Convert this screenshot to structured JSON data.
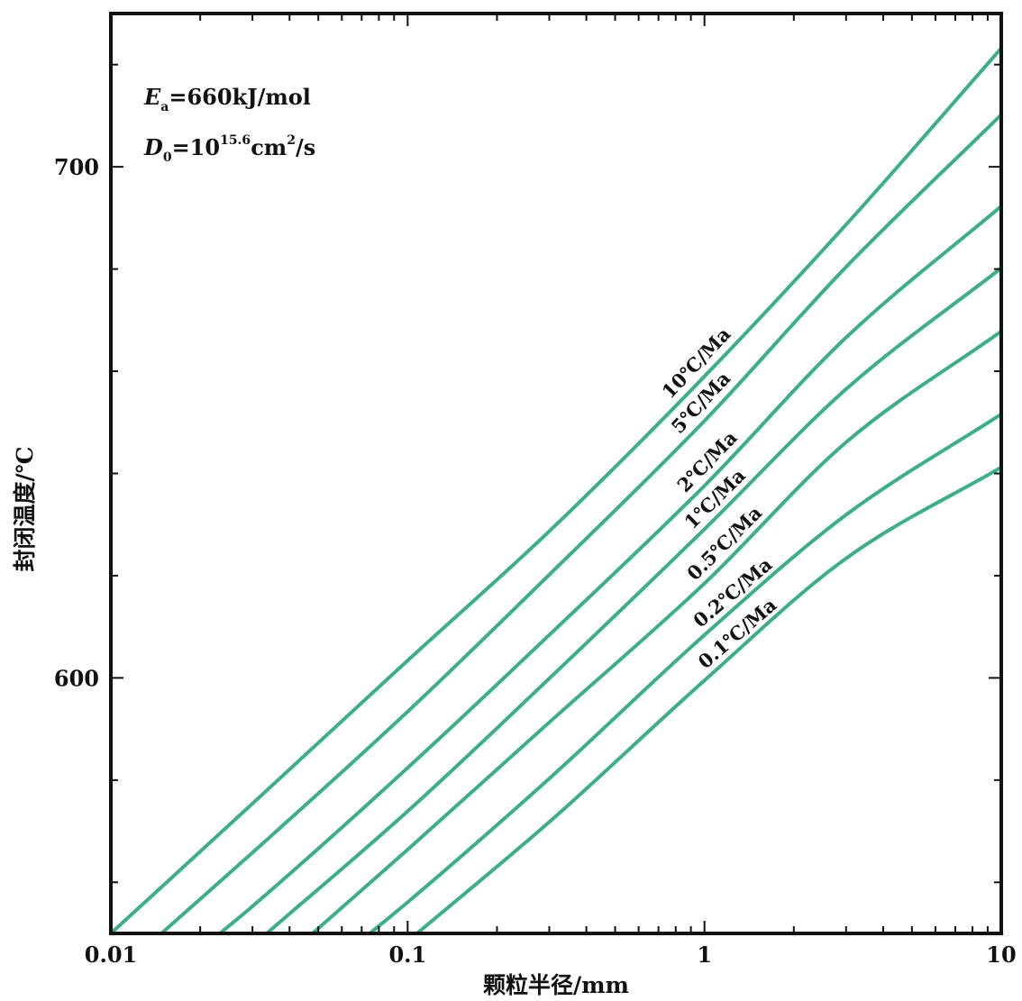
{
  "chart_data": {
    "type": "line",
    "xlabel": "颗粒半径/mm",
    "ylabel": "封闭温度/℃",
    "x_scale": "log",
    "xlim": [
      0.01,
      10
    ],
    "ylim": [
      550,
      730
    ],
    "x_ticks": [
      "0.01",
      "0.1",
      "1",
      "10"
    ],
    "y_ticks": [
      "600",
      "700"
    ],
    "grid": false,
    "annotations": {
      "ea_sym": "E",
      "ea_sub": "a",
      "ea_val": "=660kJ/mol",
      "d0_sym": "D",
      "d0_sub": "0",
      "d0_mid": "=10",
      "d0_sup": "15.6",
      "d0_unit": "cm",
      "d0_unit_sup": "2",
      "d0_tail": "/s"
    },
    "series": [
      {
        "name": "10℃/Ma",
        "color": "#3dae8a",
        "x": [
          0.01,
          0.03,
          0.1,
          0.3,
          1,
          3,
          10
        ],
        "y": [
          550,
          575.4,
          603.4,
          628.7,
          659,
          688.7,
          723.2
        ]
      },
      {
        "name": "5℃/Ma",
        "color": "#3dae8a",
        "x": [
          0.0148,
          0.03,
          0.1,
          0.3,
          1,
          3,
          10
        ],
        "y": [
          550,
          565.8,
          593.4,
          620.2,
          650.3,
          680.4,
          710.2
        ]
      },
      {
        "name": "2℃/Ma",
        "color": "#3dae8a",
        "x": [
          0.0233,
          0.03,
          0.1,
          0.3,
          1,
          3,
          10
        ],
        "y": [
          550,
          555.3,
          582.4,
          608.4,
          637.6,
          666.6,
          692.3
        ]
      },
      {
        "name": "1℃/Ma",
        "color": "#3dae8a",
        "x": [
          0.0335,
          0.1,
          0.3,
          1,
          3,
          10
        ],
        "y": [
          550,
          573.9,
          599.9,
          629.1,
          656.5,
          680.2
        ]
      },
      {
        "name": "0.5℃/Ma",
        "color": "#3dae8a",
        "x": [
          0.0478,
          0.1,
          0.3,
          1,
          3,
          10
        ],
        "y": [
          550,
          566.4,
          591.3,
          618.5,
          646.1,
          667.8
        ]
      },
      {
        "name": "0.2℃/Ma",
        "color": "#3dae8a",
        "x": [
          0.0745,
          0.1,
          0.3,
          1,
          3,
          10
        ],
        "y": [
          550,
          556.1,
          580.3,
          608.4,
          631.9,
          651.6
        ]
      },
      {
        "name": "0.1℃/Ma",
        "color": "#3dae8a",
        "x": [
          0.1075,
          0.3,
          1,
          3,
          10
        ],
        "y": [
          550,
          571.8,
          599.5,
          623.4,
          641.2
        ]
      }
    ]
  }
}
